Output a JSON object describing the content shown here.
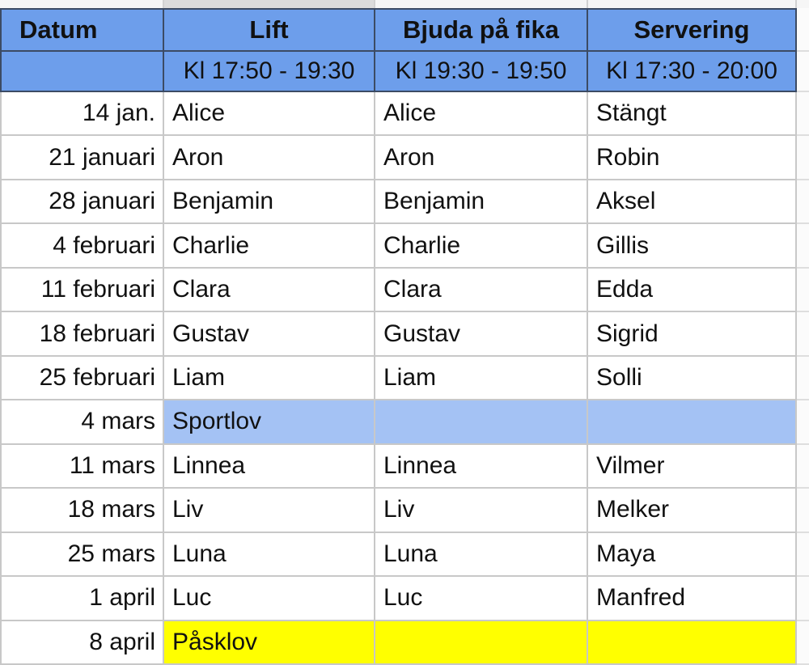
{
  "table": {
    "columns": [
      {
        "label": "Datum",
        "time": ""
      },
      {
        "label": "Lift",
        "time": "Kl 17:50 - 19:30"
      },
      {
        "label": "Bjuda på fika",
        "time": "Kl 19:30 - 19:50"
      },
      {
        "label": "Servering",
        "time": "Kl 17:30 - 20:00"
      }
    ],
    "rows": [
      {
        "date": "14 jan.",
        "lift": "Alice",
        "fika": "Alice",
        "servering": "Stängt",
        "type": "normal"
      },
      {
        "date": "21 januari",
        "lift": "Aron",
        "fika": "Aron",
        "servering": "Robin",
        "type": "normal"
      },
      {
        "date": "28 januari",
        "lift": "Benjamin",
        "fika": "Benjamin",
        "servering": "Aksel",
        "type": "normal"
      },
      {
        "date": "4 februari",
        "lift": "Charlie",
        "fika": "Charlie",
        "servering": "Gillis",
        "type": "normal"
      },
      {
        "date": "11 februari",
        "lift": "Clara",
        "fika": "Clara",
        "servering": "Edda",
        "type": "normal"
      },
      {
        "date": "18 februari",
        "lift": "Gustav",
        "fika": "Gustav",
        "servering": "Sigrid",
        "type": "normal"
      },
      {
        "date": "25 februari",
        "lift": "Liam",
        "fika": "Liam",
        "servering": "Solli",
        "type": "normal"
      },
      {
        "date": "4 mars",
        "lift": "Sportlov",
        "fika": "",
        "servering": "",
        "type": "holiday-blue"
      },
      {
        "date": "11 mars",
        "lift": "Linnea",
        "fika": "Linnea",
        "servering": "Vilmer",
        "type": "normal"
      },
      {
        "date": "18 mars",
        "lift": "Liv",
        "fika": "Liv",
        "servering": "Melker",
        "type": "normal"
      },
      {
        "date": "25 mars",
        "lift": "Luna",
        "fika": "Luna",
        "servering": "Maya",
        "type": "normal"
      },
      {
        "date": "1 april",
        "lift": "Luc",
        "fika": "Luc",
        "servering": "Manfred",
        "type": "normal"
      },
      {
        "date": "8 april",
        "lift": "Påsklov",
        "fika": "",
        "servering": "",
        "type": "holiday-yellow"
      }
    ]
  },
  "colors": {
    "header_blue": "#6d9eeb",
    "holiday_blue": "#a4c2f4",
    "holiday_yellow": "#ffff00",
    "grid_line": "#c8c8c8",
    "header_border": "#3c4b64",
    "strip_gray": "#dcdcdc"
  }
}
